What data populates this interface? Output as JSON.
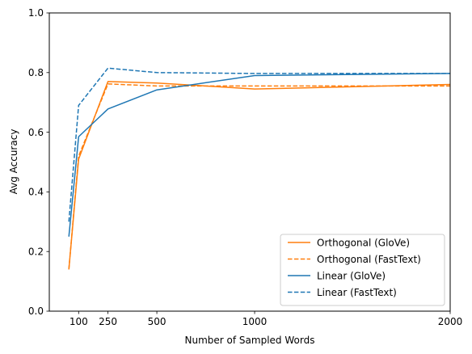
{
  "chart_data": {
    "type": "line",
    "title": "",
    "xlabel": "Number of Sampled Words",
    "ylabel": "Avg Accuracy",
    "xlim": [
      -50,
      2000
    ],
    "ylim": [
      0.0,
      1.0
    ],
    "xticks": [
      100,
      250,
      500,
      1000,
      2000
    ],
    "xtick_labels": [
      "100",
      "250",
      "500",
      "1000",
      "2000"
    ],
    "yticks": [
      0.0,
      0.2,
      0.4,
      0.6,
      0.8,
      1.0
    ],
    "ytick_labels": [
      "0.0",
      "0.2",
      "0.4",
      "0.6",
      "0.8",
      "1.0"
    ],
    "grid": false,
    "legend_position": "lower-right",
    "series": [
      {
        "name": "Orthogonal (GloVe)",
        "color": "#ff7f0e",
        "dash": "solid",
        "x": [
          50,
          100,
          250,
          500,
          1000,
          2000
        ],
        "y": [
          0.14,
          0.51,
          0.77,
          0.765,
          0.745,
          0.76
        ]
      },
      {
        "name": "Orthogonal (FastText)",
        "color": "#ff7f0e",
        "dash": "dashed",
        "x": [
          50,
          100,
          250,
          500,
          1000,
          2000
        ],
        "y": [
          0.14,
          0.52,
          0.762,
          0.755,
          0.755,
          0.755
        ]
      },
      {
        "name": "Linear (GloVe)",
        "color": "#1f77b4",
        "dash": "solid",
        "x": [
          50,
          100,
          250,
          500,
          1000,
          2000
        ],
        "y": [
          0.25,
          0.585,
          0.678,
          0.742,
          0.79,
          0.797
        ]
      },
      {
        "name": "Linear (FastText)",
        "color": "#1f77b4",
        "dash": "dashed",
        "x": [
          50,
          100,
          250,
          500,
          1000,
          2000
        ],
        "y": [
          0.3,
          0.69,
          0.815,
          0.8,
          0.797,
          0.797
        ]
      }
    ]
  }
}
